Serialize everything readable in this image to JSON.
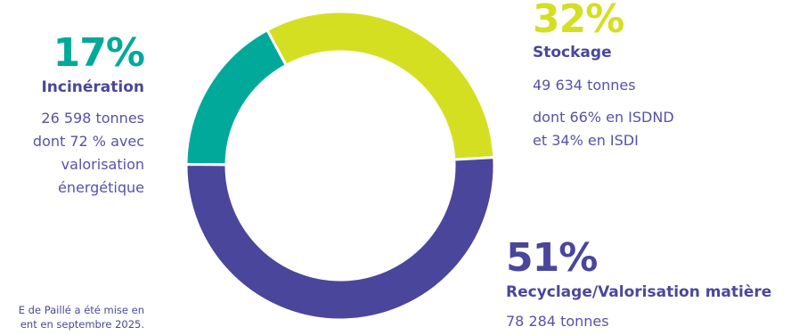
{
  "chart_data": {
    "type": "pie",
    "categories": [
      "Incinération",
      "Stockage",
      "Recyclage/Valorisation matière"
    ],
    "values": [
      17,
      32,
      51
    ],
    "percent_labels": [
      "17%",
      "32%",
      "51%"
    ],
    "colors": [
      "#00a99a",
      "#d4df22",
      "#4a469c"
    ],
    "donut": true
  },
  "segments": {
    "incineration": {
      "percent": "17%",
      "name": "Incinération",
      "line1": "26 598 tonnes",
      "line2": "dont 72 % avec",
      "line3": "valorisation",
      "line4": "énergétique"
    },
    "stockage": {
      "percent": "32%",
      "name": "Stockage",
      "line1": "49 634 tonnes",
      "line2": "dont 66% en ISDND",
      "line3": "et 34% en ISDI"
    },
    "recyclage": {
      "percent": "51%",
      "name": "Recyclage/Valorisation matière",
      "line1": "78 284 tonnes"
    }
  },
  "footnote": {
    "line1": "E de Paillé a été mise en",
    "line2": "ent en septembre 2025."
  }
}
